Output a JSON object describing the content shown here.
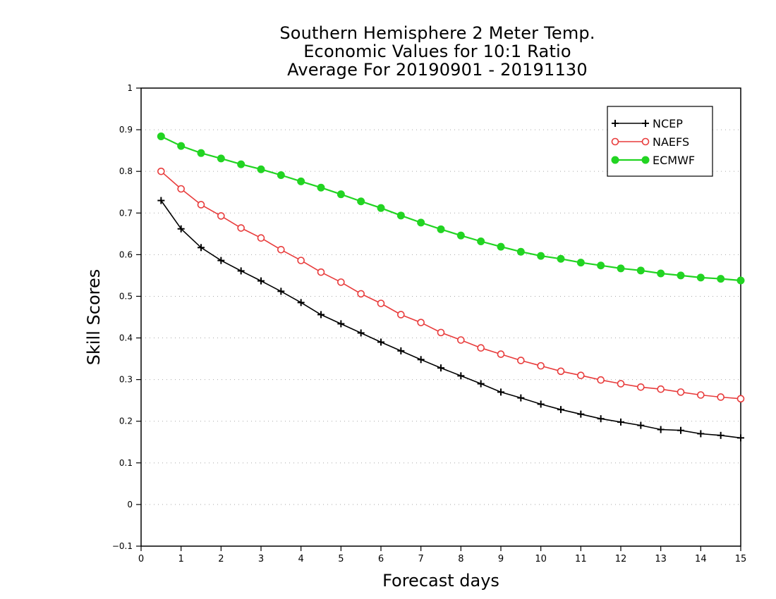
{
  "chart_data": {
    "type": "line",
    "title": "Southern Hemisphere 2 Meter Temp.\nEconomic Values for 10:1 Ratio\nAverage For 20190901 - 20191130",
    "title_lines": [
      "Southern Hemisphere 2 Meter Temp.",
      "Economic Values for 10:1 Ratio",
      "Average For 20190901 - 20191130"
    ],
    "xlabel": "Forecast days",
    "ylabel": "Skill Scores",
    "xlim": [
      0,
      15
    ],
    "ylim": [
      -0.1,
      1
    ],
    "x_ticks": [
      0,
      1,
      2,
      3,
      4,
      5,
      6,
      7,
      8,
      9,
      10,
      11,
      12,
      13,
      14,
      15
    ],
    "y_ticks": [
      -0.1,
      0,
      0.1,
      0.2,
      0.3,
      0.4,
      0.5,
      0.6,
      0.7,
      0.8,
      0.9,
      1
    ],
    "y_tick_labels": [
      "−0.1",
      "0",
      "0.1",
      "0.2",
      "0.3",
      "0.4",
      "0.5",
      "0.6",
      "0.7",
      "0.8",
      "0.9",
      "1"
    ],
    "grid": "horizontal dotted",
    "legend_position": "top-right",
    "x": [
      0.5,
      1,
      1.5,
      2,
      2.5,
      3,
      3.5,
      4,
      4.5,
      5,
      5.5,
      6,
      6.5,
      7,
      7.5,
      8,
      8.5,
      9,
      9.5,
      10,
      10.5,
      11,
      11.5,
      12,
      12.5,
      13,
      13.5,
      14,
      14.5,
      15
    ],
    "series": [
      {
        "name": "NCEP",
        "color": "#000000",
        "marker": "plus",
        "values": [
          0.73,
          0.662,
          0.617,
          0.586,
          0.561,
          0.537,
          0.512,
          0.485,
          0.456,
          0.434,
          0.412,
          0.39,
          0.369,
          0.348,
          0.328,
          0.309,
          0.29,
          0.27,
          0.256,
          0.241,
          0.228,
          0.217,
          0.206,
          0.198,
          0.19,
          0.18,
          0.178,
          0.17,
          0.166,
          0.16
        ]
      },
      {
        "name": "NAEFS",
        "color": "#e83c3c",
        "marker": "open-circle",
        "values": [
          0.8,
          0.758,
          0.72,
          0.693,
          0.664,
          0.64,
          0.612,
          0.586,
          0.558,
          0.534,
          0.506,
          0.483,
          0.456,
          0.437,
          0.413,
          0.395,
          0.376,
          0.361,
          0.346,
          0.333,
          0.32,
          0.31,
          0.299,
          0.29,
          0.282,
          0.277,
          0.27,
          0.263,
          0.258,
          0.254
        ]
      },
      {
        "name": "ECMWF",
        "color": "#22d422",
        "marker": "filled-circle",
        "values": [
          0.884,
          0.861,
          0.844,
          0.831,
          0.817,
          0.805,
          0.791,
          0.776,
          0.761,
          0.745,
          0.728,
          0.712,
          0.694,
          0.677,
          0.661,
          0.646,
          0.632,
          0.619,
          0.607,
          0.597,
          0.59,
          0.581,
          0.574,
          0.567,
          0.562,
          0.555,
          0.55,
          0.545,
          0.542,
          0.538
        ]
      }
    ]
  }
}
